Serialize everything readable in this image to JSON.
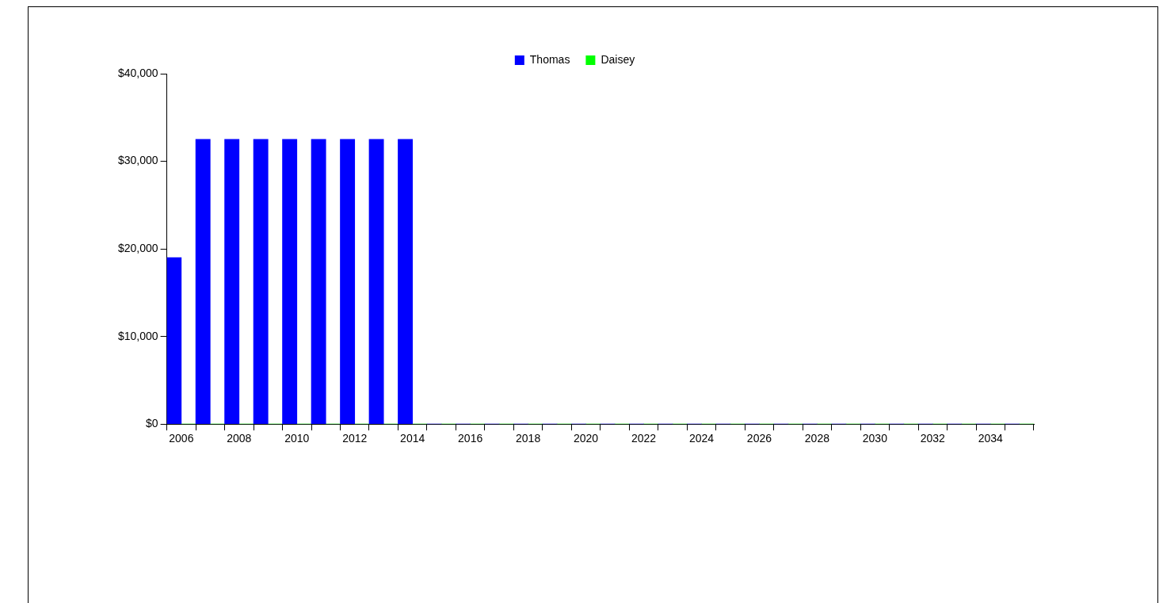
{
  "chart_data": {
    "type": "bar",
    "categories": [
      "2006",
      null,
      "2008",
      null,
      "2010",
      null,
      "2012",
      null,
      "2014",
      null,
      "2016",
      null,
      "2018",
      null,
      "2020",
      null,
      "2022",
      null,
      "2024",
      null,
      "2026",
      null,
      "2028",
      null,
      "2030",
      null,
      "2032",
      null,
      "2034",
      null
    ],
    "series": [
      {
        "name": "Thomas",
        "color": "#0000ff",
        "values": [
          19000,
          32500,
          32500,
          32500,
          32500,
          32500,
          32500,
          32500,
          32500,
          0,
          0,
          0,
          0,
          0,
          0,
          0,
          0,
          0,
          0,
          0,
          0,
          0,
          0,
          0,
          0,
          0,
          0,
          0,
          0,
          0
        ]
      },
      {
        "name": "Daisey",
        "color": "#00ff00",
        "values": [
          0,
          0,
          0,
          0,
          0,
          0,
          0,
          0,
          0,
          0,
          0,
          0,
          0,
          0,
          0,
          0,
          0,
          0,
          0,
          0,
          0,
          0,
          0,
          0,
          0,
          0,
          0,
          0,
          0,
          0
        ]
      }
    ],
    "ylim": [
      0,
      40000
    ],
    "yticks": [
      {
        "value": 0,
        "label": "$0"
      },
      {
        "value": 10000,
        "label": "$10,000"
      },
      {
        "value": 20000,
        "label": "$20,000"
      },
      {
        "value": 30000,
        "label": "$30,000"
      },
      {
        "value": 40000,
        "label": "$40,000"
      }
    ],
    "grid": false,
    "legend": "top"
  }
}
